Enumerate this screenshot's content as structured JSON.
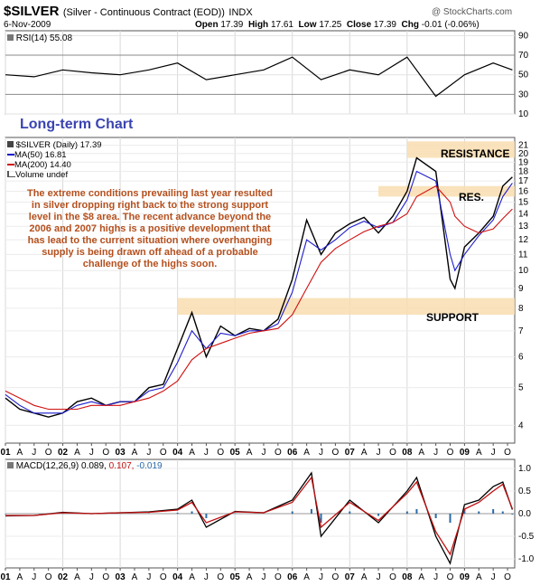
{
  "header": {
    "symbol": "$SILVER",
    "description": "(Silver - Continuous Contract (EOD))",
    "exchange": "INDX",
    "copyright": "@ StockCharts.com",
    "date": "6-Nov-2009",
    "open_label": "Open",
    "open_value": "17.39",
    "high_label": "High",
    "high_value": "17.61",
    "low_label": "Low",
    "low_value": "17.25",
    "close_label": "Close",
    "close_value": "17.39",
    "chg_label": "Chg",
    "chg_value": "-0.01 (-0.06%)"
  },
  "annotations": {
    "title": "Long-term Chart",
    "note": "The extreme conditions prevailing last year resulted\nin silver dropping right back to the strong support\nlevel in the $8 area. The recent advance beyond the\n2006 and 2007 highs is a positive development that\nhas lead to the current situation where overhanging\nsupply is being drawn off ahead of a probable\nchallenge of the highs soon.",
    "resistance": "RESISTANCE",
    "res": "RES.",
    "support": "SUPPORT"
  },
  "legend": {
    "price": "$SILVER (Daily) 17.39",
    "ma50": "MA(50) 16.81",
    "ma200": "MA(200) 14.40",
    "volume": "Volume undef"
  },
  "rsi_label": {
    "name": "RSI(14)",
    "value": "55.08"
  },
  "macd_label": {
    "name": "MACD(12,26,9)",
    "v1": "0.089,",
    "v2": "0.107,",
    "v3": "-0.019"
  },
  "colors": {
    "price": "#000000",
    "ma50": "#1c1ccc",
    "ma200": "#d01010",
    "macd_line": "#000000",
    "signal_line": "#c01010",
    "histogram": "#2a6aa8",
    "band": "#f8ddb0",
    "note_text": "#b5501e",
    "title_text": "#3a44b0"
  },
  "chart_data": [
    {
      "type": "line",
      "title": "RSI(14) 55.08",
      "ylim": [
        10,
        95
      ],
      "y_ticks": [
        10,
        30,
        50,
        70,
        90
      ],
      "reference_lines": [
        30,
        70
      ],
      "x": [
        "2001-01",
        "2001-07",
        "2002-01",
        "2002-07",
        "2003-01",
        "2003-07",
        "2004-01",
        "2004-07",
        "2005-01",
        "2005-07",
        "2006-01",
        "2006-07",
        "2007-01",
        "2007-07",
        "2008-01",
        "2008-07",
        "2009-01",
        "2009-07",
        "2009-11"
      ],
      "series": [
        {
          "name": "RSI(14)",
          "values": [
            50,
            48,
            55,
            52,
            50,
            55,
            62,
            45,
            50,
            55,
            68,
            45,
            55,
            50,
            68,
            28,
            50,
            62,
            55
          ]
        }
      ]
    },
    {
      "type": "line",
      "title": "$SILVER (Daily) 17.39",
      "scale": "log",
      "ylim": [
        3.6,
        22
      ],
      "y_ticks": [
        4,
        5,
        6,
        7,
        8,
        9,
        10,
        11,
        12,
        13,
        14,
        15,
        16,
        17,
        18,
        19,
        20,
        21
      ],
      "x_ticks": [
        "01",
        "A",
        "J",
        "O",
        "02",
        "A",
        "J",
        "O",
        "03",
        "A",
        "J",
        "O",
        "04",
        "A",
        "J",
        "O",
        "05",
        "A",
        "J",
        "O",
        "06",
        "A",
        "J",
        "O",
        "07",
        "A",
        "J",
        "O",
        "08",
        "A",
        "J",
        "O",
        "09",
        "A",
        "J",
        "O"
      ],
      "x": [
        "2001-01",
        "2001-04",
        "2001-07",
        "2001-10",
        "2002-01",
        "2002-04",
        "2002-07",
        "2002-10",
        "2003-01",
        "2003-04",
        "2003-07",
        "2003-10",
        "2004-01",
        "2004-04",
        "2004-07",
        "2004-10",
        "2005-01",
        "2005-04",
        "2005-07",
        "2005-10",
        "2006-01",
        "2006-04",
        "2006-07",
        "2006-10",
        "2007-01",
        "2007-04",
        "2007-07",
        "2007-10",
        "2008-01",
        "2008-03",
        "2008-07",
        "2008-10",
        "2008-11",
        "2009-01",
        "2009-04",
        "2009-07",
        "2009-09",
        "2009-11"
      ],
      "series": [
        {
          "name": "$SILVER",
          "values": [
            4.7,
            4.4,
            4.3,
            4.2,
            4.3,
            4.6,
            4.7,
            4.5,
            4.6,
            4.6,
            5.0,
            5.1,
            6.3,
            7.8,
            6.0,
            7.2,
            6.8,
            7.1,
            7.0,
            7.5,
            9.5,
            13.5,
            11.0,
            12.5,
            13.2,
            13.7,
            12.5,
            13.8,
            16.0,
            19.5,
            18.0,
            9.5,
            9.0,
            11.5,
            12.5,
            13.8,
            16.5,
            17.4
          ]
        },
        {
          "name": "MA(50)",
          "values": [
            4.8,
            4.5,
            4.3,
            4.3,
            4.3,
            4.5,
            4.6,
            4.5,
            4.6,
            4.6,
            4.9,
            5.0,
            5.8,
            7.0,
            6.3,
            6.9,
            6.8,
            7.0,
            7.0,
            7.3,
            8.8,
            12.0,
            11.3,
            12.0,
            12.9,
            13.4,
            12.9,
            13.3,
            15.2,
            18.0,
            17.0,
            11.0,
            10.0,
            11.0,
            12.3,
            13.5,
            15.5,
            16.8
          ]
        },
        {
          "name": "MA(200)",
          "values": [
            4.9,
            4.7,
            4.5,
            4.4,
            4.4,
            4.4,
            4.5,
            4.5,
            4.5,
            4.6,
            4.7,
            4.9,
            5.2,
            5.9,
            6.3,
            6.5,
            6.7,
            6.9,
            7.0,
            7.1,
            7.7,
            9.0,
            10.5,
            11.4,
            12.0,
            12.6,
            13.0,
            13.3,
            14.0,
            15.5,
            16.5,
            15.0,
            13.8,
            13.0,
            12.5,
            12.8,
            13.6,
            14.4
          ]
        }
      ],
      "bands": [
        {
          "label": "RESISTANCE",
          "y": [
            19.5,
            21.5
          ]
        },
        {
          "label": "RES.",
          "y": [
            15.5,
            16.5
          ]
        },
        {
          "label": "SUPPORT",
          "y": [
            7.7,
            8.5
          ]
        }
      ]
    },
    {
      "type": "line",
      "title": "MACD(12,26,9) 0.089, 0.107, -0.019",
      "ylim": [
        -1.2,
        1.2
      ],
      "y_ticks": [
        1.0,
        0.5,
        0.0,
        -0.5,
        -1.0
      ],
      "x": [
        "2001-01",
        "2001-07",
        "2002-01",
        "2002-07",
        "2003-01",
        "2003-07",
        "2004-01",
        "2004-04",
        "2004-07",
        "2005-01",
        "2005-07",
        "2006-01",
        "2006-05",
        "2006-07",
        "2007-01",
        "2007-07",
        "2008-01",
        "2008-03",
        "2008-07",
        "2008-10",
        "2009-01",
        "2009-04",
        "2009-07",
        "2009-09",
        "2009-11"
      ],
      "series": [
        {
          "name": "MACD",
          "values": [
            -0.05,
            -0.04,
            0.03,
            0.0,
            0.02,
            0.04,
            0.1,
            0.3,
            -0.3,
            0.05,
            0.02,
            0.3,
            0.9,
            -0.5,
            0.3,
            -0.2,
            0.5,
            0.8,
            -0.5,
            -1.1,
            0.2,
            0.3,
            0.6,
            0.7,
            0.09
          ]
        },
        {
          "name": "Signal",
          "values": [
            -0.04,
            -0.04,
            0.02,
            0.0,
            0.02,
            0.03,
            0.08,
            0.25,
            -0.2,
            0.04,
            0.02,
            0.25,
            0.8,
            -0.3,
            0.25,
            -0.15,
            0.45,
            0.7,
            -0.4,
            -0.9,
            0.1,
            0.25,
            0.5,
            0.65,
            0.107
          ]
        },
        {
          "name": "Histogram",
          "values": [
            -0.01,
            0.0,
            0.01,
            0.0,
            0.0,
            0.01,
            0.02,
            0.05,
            -0.1,
            0.01,
            0.0,
            0.05,
            0.1,
            -0.2,
            0.05,
            -0.05,
            0.05,
            0.1,
            -0.1,
            -0.2,
            0.1,
            0.05,
            0.1,
            0.05,
            -0.019
          ]
        }
      ]
    }
  ]
}
